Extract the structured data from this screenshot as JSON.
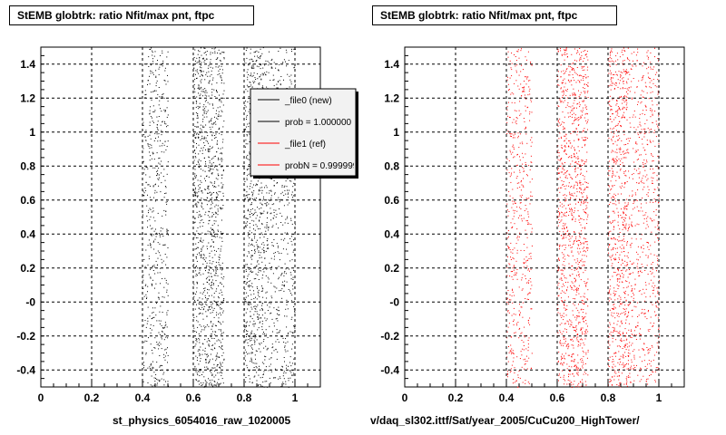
{
  "chart_data": [
    {
      "type": "scatter",
      "title": "StEMB globtrk: ratio Nfit/max pnt, ftpc",
      "xlabel": "st_physics_6054016_raw_1020005",
      "xlim": [
        0,
        1.1
      ],
      "ylim": [
        -0.5,
        1.5
      ],
      "xticks": [
        "0",
        "0.2",
        "0.4",
        "0.6",
        "0.8",
        "1"
      ],
      "yticks": [
        "-0.4",
        "-0.2",
        "-0",
        "0.2",
        "0.4",
        "0.6",
        "0.8",
        "1",
        "1.2",
        "1.4"
      ],
      "grid": true,
      "point_color": "#000000",
      "bands": [
        {
          "x_from": 0.4,
          "x_to": 0.5,
          "density": 0.55
        },
        {
          "x_from": 0.6,
          "x_to": 0.72,
          "density": 1.0
        },
        {
          "x_from": 0.8,
          "x_to": 0.88,
          "density": 1.0
        },
        {
          "x_from": 0.88,
          "x_to": 1.0,
          "density": 0.55
        }
      ],
      "legend": {
        "placement": "top-right",
        "entries": [
          {
            "label": "_file0 (new)",
            "color": "#000000"
          },
          {
            "label": "prob = 1.000000",
            "color": "#000000"
          },
          {
            "label": "_file1 (ref)",
            "color": "#ff0000"
          },
          {
            "label": "probN = 0.999999",
            "color": "#ff0000"
          }
        ]
      }
    },
    {
      "type": "scatter",
      "title": "StEMB globtrk: ratio Nfit/max pnt, ftpc",
      "xlabel": "v/daq_sl302.ittf/Sat/year_2005/CuCu200_HighTower/",
      "xlim": [
        0,
        1.1
      ],
      "ylim": [
        -0.5,
        1.5
      ],
      "xticks": [
        "0",
        "0.2",
        "0.4",
        "0.6",
        "0.8",
        "1"
      ],
      "yticks": [
        "-0.4",
        "-0.2",
        "-0",
        "0.2",
        "0.4",
        "0.6",
        "0.8",
        "1",
        "1.2",
        "1.4"
      ],
      "grid": true,
      "point_color": "#ff0000",
      "bands": [
        {
          "x_from": 0.4,
          "x_to": 0.5,
          "density": 0.55
        },
        {
          "x_from": 0.6,
          "x_to": 0.72,
          "density": 1.0
        },
        {
          "x_from": 0.8,
          "x_to": 0.88,
          "density": 1.0
        },
        {
          "x_from": 0.88,
          "x_to": 1.0,
          "density": 0.55
        }
      ]
    }
  ]
}
